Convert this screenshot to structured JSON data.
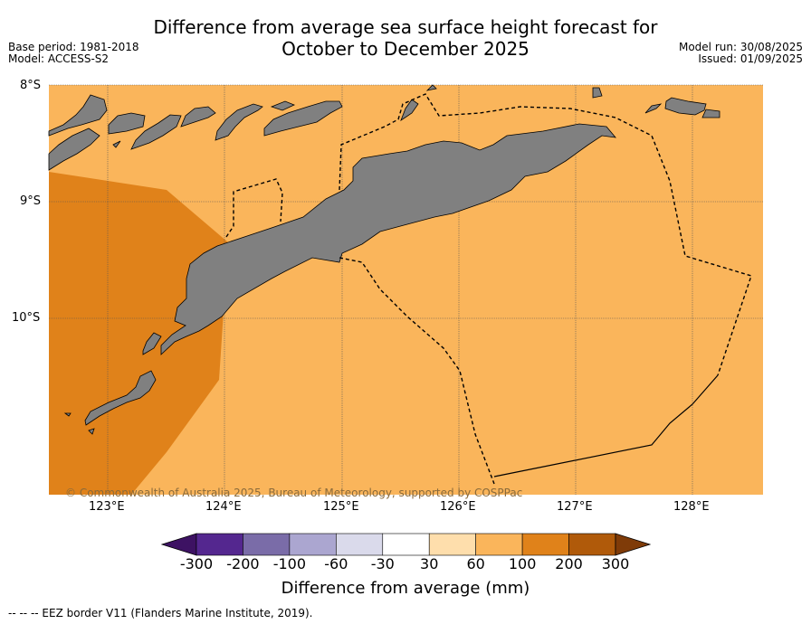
{
  "title_line1": "Difference from average sea surface height forecast for",
  "title_line2": "October to December 2025",
  "base_period": "Base period: 1981-2018",
  "model": "Model: ACCESS-S2",
  "model_run": "Model run: 30/08/2025",
  "issued": "Issued: 01/09/2025",
  "copyright": "© Commonwealth of Australia 2025, Bureau of Meteorology, supported by COSPPac",
  "lat_labels": [
    "8°S",
    "9°S",
    "10°S"
  ],
  "lon_labels": [
    "123°E",
    "124°E",
    "125°E",
    "126°E",
    "127°E",
    "128°E"
  ],
  "colorbar": {
    "ticks": [
      "-300",
      "-200",
      "-100",
      "-60",
      "-30",
      "30",
      "60",
      "100",
      "200",
      "300"
    ],
    "colors": [
      "#3d1263",
      "#54278f",
      "#7a6ca8",
      "#aba6d0",
      "#dadaeb",
      "#ffffff",
      "#fedeac",
      "#fab55b",
      "#e0821a",
      "#b05a0a",
      "#7f3b08"
    ],
    "title": "Difference from average (mm)"
  },
  "eez_note": "--  --  -- EEZ border V11 (Flanders Marine Institute, 2019).",
  "map_colors": {
    "ocean_60_100": "#fab55b",
    "ocean_100_200": "#e0821a",
    "land": "#808080"
  }
}
